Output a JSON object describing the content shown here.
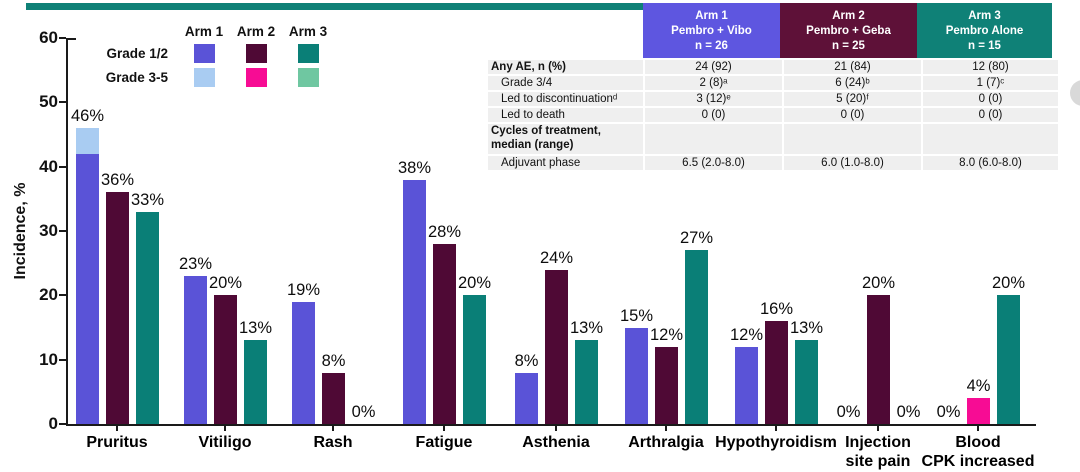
{
  "colors": {
    "accent_teal": "#0f8177",
    "axis": "#1a1a1a",
    "table_row_bg": "#efefef",
    "edge_button_grey": "#d9d9d9",
    "arm_colors": [
      {
        "g12": "#5a53d7",
        "g35": "#a9ccf2"
      },
      {
        "g12": "#4f0935",
        "g35": "#f70c94"
      },
      {
        "g12": "#0a7f77",
        "g35": "#6fc7a1"
      }
    ],
    "header_colors": [
      "#5e56e0",
      "#5e1138",
      "#0f8177"
    ]
  },
  "legend": {
    "arm_labels": [
      "Arm 1",
      "Arm 2",
      "Arm 3"
    ],
    "rows": [
      {
        "label": "Grade 1/2",
        "colors": [
          "#5a53d7",
          "#4f0935",
          "#0a7f77"
        ]
      },
      {
        "label": "Grade 3-5",
        "colors": [
          "#a9ccf2",
          "#f70c94",
          "#6fc7a1"
        ]
      }
    ]
  },
  "chart_data": {
    "type": "bar",
    "ylabel": "Incidence, %",
    "ylim": [
      0,
      60
    ],
    "y_ticks": [
      0,
      10,
      20,
      30,
      40,
      50,
      60
    ],
    "grid": false,
    "legend_position": "top-left",
    "categories": [
      "Pruritus",
      "Vitiligo",
      "Rash",
      "Fatigue",
      "Asthenia",
      "Arthralgia",
      "Hypothyroidism",
      "Injection\nsite pain",
      "Blood\nCPK increased"
    ],
    "groups": [
      {
        "category": "Pruritus",
        "bars": [
          {
            "arm": 1,
            "label": "46%",
            "segments": [
              {
                "grade": "1/2",
                "value": 42
              },
              {
                "grade": "3-5",
                "value": 4
              }
            ]
          },
          {
            "arm": 2,
            "label": "36%",
            "segments": [
              {
                "grade": "1/2",
                "value": 36
              }
            ]
          },
          {
            "arm": 3,
            "label": "33%",
            "segments": [
              {
                "grade": "1/2",
                "value": 33
              }
            ]
          }
        ]
      },
      {
        "category": "Vitiligo",
        "bars": [
          {
            "arm": 1,
            "label": "23%",
            "segments": [
              {
                "grade": "1/2",
                "value": 23
              }
            ]
          },
          {
            "arm": 2,
            "label": "20%",
            "segments": [
              {
                "grade": "1/2",
                "value": 20
              }
            ]
          },
          {
            "arm": 3,
            "label": "13%",
            "segments": [
              {
                "grade": "1/2",
                "value": 13
              }
            ]
          }
        ]
      },
      {
        "category": "Rash",
        "bars": [
          {
            "arm": 1,
            "label": "19%",
            "segments": [
              {
                "grade": "1/2",
                "value": 19
              }
            ]
          },
          {
            "arm": 2,
            "label": "8%",
            "segments": [
              {
                "grade": "1/2",
                "value": 8
              }
            ]
          },
          {
            "arm": 3,
            "label": "0%",
            "segments": []
          }
        ]
      },
      {
        "category": "Fatigue",
        "bars": [
          {
            "arm": 1,
            "label": "38%",
            "segments": [
              {
                "grade": "1/2",
                "value": 38
              }
            ]
          },
          {
            "arm": 2,
            "label": "28%",
            "segments": [
              {
                "grade": "1/2",
                "value": 28
              }
            ]
          },
          {
            "arm": 3,
            "label": "20%",
            "segments": [
              {
                "grade": "1/2",
                "value": 20
              }
            ]
          }
        ]
      },
      {
        "category": "Asthenia",
        "bars": [
          {
            "arm": 1,
            "label": "8%",
            "segments": [
              {
                "grade": "1/2",
                "value": 8
              }
            ]
          },
          {
            "arm": 2,
            "label": "24%",
            "segments": [
              {
                "grade": "1/2",
                "value": 24
              }
            ]
          },
          {
            "arm": 3,
            "label": "13%",
            "segments": [
              {
                "grade": "1/2",
                "value": 13
              }
            ]
          }
        ]
      },
      {
        "category": "Arthralgia",
        "bars": [
          {
            "arm": 1,
            "label": "15%",
            "segments": [
              {
                "grade": "1/2",
                "value": 15
              }
            ]
          },
          {
            "arm": 2,
            "label": "12%",
            "segments": [
              {
                "grade": "1/2",
                "value": 12
              }
            ]
          },
          {
            "arm": 3,
            "label": "27%",
            "segments": [
              {
                "grade": "1/2",
                "value": 27
              }
            ]
          }
        ]
      },
      {
        "category": "Hypothyroidism",
        "bars": [
          {
            "arm": 1,
            "label": "12%",
            "segments": [
              {
                "grade": "1/2",
                "value": 12
              }
            ]
          },
          {
            "arm": 2,
            "label": "16%",
            "segments": [
              {
                "grade": "1/2",
                "value": 16
              }
            ]
          },
          {
            "arm": 3,
            "label": "13%",
            "segments": [
              {
                "grade": "1/2",
                "value": 13
              }
            ]
          }
        ]
      },
      {
        "category": "Injection\nsite pain",
        "bars": [
          {
            "arm": 1,
            "label": "0%",
            "segments": []
          },
          {
            "arm": 2,
            "label": "20%",
            "segments": [
              {
                "grade": "1/2",
                "value": 20
              }
            ]
          },
          {
            "arm": 3,
            "label": "0%",
            "segments": []
          }
        ]
      },
      {
        "category": "Blood\nCPK increased",
        "bars": [
          {
            "arm": 1,
            "label": "0%",
            "segments": []
          },
          {
            "arm": 2,
            "label": "4%",
            "segments": [
              {
                "grade": "3-5",
                "value": 4
              }
            ]
          },
          {
            "arm": 3,
            "label": "20%",
            "segments": [
              {
                "grade": "1/2",
                "value": 20
              }
            ]
          }
        ]
      }
    ]
  },
  "table": {
    "columns": [
      {
        "title": "Arm 1\nPembro + Vibo\nn = 26"
      },
      {
        "title": "Arm 2\nPembro + Geba\nn = 25"
      },
      {
        "title": "Arm 3\nPembro Alone\nn = 15"
      }
    ],
    "rows": [
      {
        "label": "Any AE, n (%)",
        "style": "bold",
        "values": [
          "24 (92)",
          "21 (84)",
          "12 (80)"
        ]
      },
      {
        "label": "Grade 3/4",
        "style": "indent",
        "values": [
          "2 (8)ᵃ",
          "6 (24)ᵇ",
          "1 (7)ᶜ"
        ]
      },
      {
        "label": "Led to discontinuationᵈ",
        "style": "indent",
        "values": [
          "3 (12)ᵉ",
          "5 (20)ᶠ",
          "0 (0)"
        ]
      },
      {
        "label": "Led to death",
        "style": "indent",
        "values": [
          "0 (0)",
          "0 (0)",
          "0 (0)"
        ]
      },
      {
        "label": "Cycles of treatment,\nmedian (range)",
        "style": "bold",
        "values": [
          "",
          "",
          ""
        ]
      },
      {
        "label": "Adjuvant phase",
        "style": "indent",
        "values": [
          "6.5 (2.0-8.0)",
          "6.0 (1.0-8.0)",
          "8.0 (6.0-8.0)"
        ]
      }
    ]
  }
}
